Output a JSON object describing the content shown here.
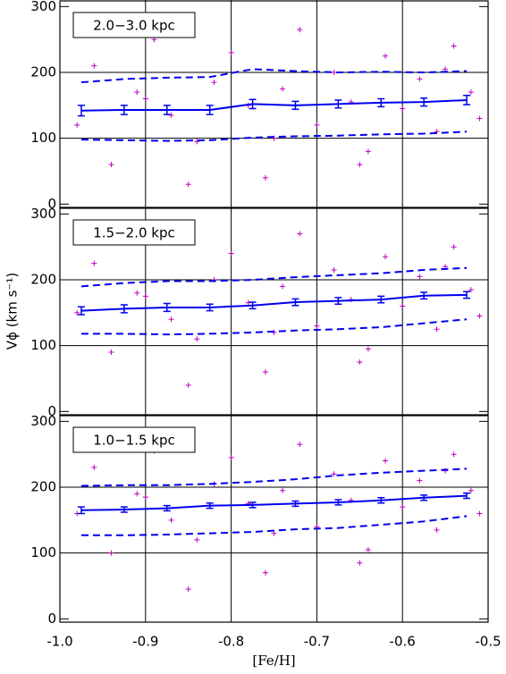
{
  "chart_data": [
    {
      "type": "line",
      "annotation": "2.0−3.0 kpc",
      "x": [
        -0.975,
        -0.925,
        -0.875,
        -0.825,
        -0.775,
        -0.725,
        -0.675,
        -0.625,
        -0.575,
        -0.525
      ],
      "series": [
        {
          "color": "#0000ee",
          "style": "solid",
          "values": [
            142,
            143,
            143,
            143,
            152,
            150,
            152,
            154,
            155,
            158
          ],
          "errors": [
            8,
            7,
            7,
            7,
            7,
            6,
            6,
            6,
            6,
            7
          ]
        },
        {
          "color": "#0000ee",
          "style": "dashed",
          "values": [
            185,
            190,
            192,
            193,
            205,
            202,
            200,
            201,
            200,
            202
          ]
        },
        {
          "color": "#0000ee",
          "style": "dashed",
          "values": [
            98,
            97,
            96,
            97,
            101,
            103,
            104,
            106,
            107,
            110
          ]
        }
      ],
      "scatter": {
        "color": "#c000c0",
        "x": [
          -0.98,
          -0.96,
          -0.94,
          -0.91,
          -0.89,
          -0.87,
          -0.84,
          -0.82,
          -0.8,
          -0.78,
          -0.76,
          -0.74,
          -0.72,
          -0.7,
          -0.68,
          -0.66,
          -0.64,
          -0.62,
          -0.6,
          -0.58,
          -0.56,
          -0.54,
          -0.52,
          -0.51,
          -0.95,
          -0.85,
          -0.75,
          -0.65,
          -0.55,
          -0.9
        ],
        "y": [
          120,
          210,
          60,
          170,
          250,
          135,
          95,
          185,
          230,
          150,
          40,
          175,
          265,
          120,
          200,
          155,
          80,
          225,
          145,
          190,
          110,
          240,
          170,
          130,
          280,
          30,
          100,
          60,
          205,
          160
        ]
      },
      "xlim": [
        -1,
        -0.5
      ],
      "xticks": [
        -0.9,
        -0.8,
        -0.7,
        -0.6
      ],
      "ylim": [
        -5,
        310
      ],
      "yticks": [
        0,
        100,
        200,
        300
      ]
    },
    {
      "type": "line",
      "annotation": "1.5−2.0 kpc",
      "ylabel": "Vϕ (km s⁻¹)",
      "x": [
        -0.975,
        -0.925,
        -0.875,
        -0.825,
        -0.775,
        -0.725,
        -0.675,
        -0.625,
        -0.575,
        -0.525
      ],
      "series": [
        {
          "color": "#0000ee",
          "style": "solid",
          "values": [
            153,
            156,
            158,
            158,
            161,
            166,
            168,
            170,
            176,
            177
          ],
          "errors": [
            6,
            6,
            6,
            5,
            5,
            5,
            5,
            5,
            5,
            5
          ]
        },
        {
          "color": "#0000ee",
          "style": "dashed",
          "values": [
            190,
            195,
            198,
            198,
            200,
            204,
            207,
            210,
            215,
            218
          ]
        },
        {
          "color": "#0000ee",
          "style": "dashed",
          "values": [
            118,
            118,
            117,
            118,
            120,
            123,
            125,
            128,
            134,
            140
          ]
        }
      ],
      "scatter": {
        "color": "#c000c0",
        "x": [
          -0.98,
          -0.96,
          -0.94,
          -0.91,
          -0.89,
          -0.87,
          -0.84,
          -0.82,
          -0.8,
          -0.78,
          -0.76,
          -0.74,
          -0.72,
          -0.7,
          -0.68,
          -0.66,
          -0.64,
          -0.62,
          -0.6,
          -0.58,
          -0.56,
          -0.54,
          -0.52,
          -0.51,
          -0.95,
          -0.85,
          -0.75,
          -0.65,
          -0.55,
          -0.9
        ],
        "y": [
          150,
          225,
          90,
          180,
          260,
          140,
          110,
          200,
          240,
          165,
          60,
          190,
          270,
          130,
          215,
          170,
          95,
          235,
          160,
          205,
          125,
          250,
          185,
          145,
          285,
          40,
          120,
          75,
          220,
          175
        ]
      },
      "xlim": [
        -1,
        -0.5
      ],
      "xticks": [
        -0.9,
        -0.8,
        -0.7,
        -0.6
      ],
      "ylim": [
        -5,
        310
      ],
      "yticks": [
        0,
        100,
        200,
        300
      ]
    },
    {
      "type": "line",
      "annotation": "1.0−1.5 kpc",
      "xlabel": "[Fe/H]",
      "x": [
        -0.975,
        -0.925,
        -0.875,
        -0.825,
        -0.775,
        -0.725,
        -0.675,
        -0.625,
        -0.575,
        -0.525
      ],
      "series": [
        {
          "color": "#0000ee",
          "style": "solid",
          "values": [
            165,
            166,
            168,
            172,
            173,
            175,
            177,
            180,
            184,
            187
          ],
          "errors": [
            5,
            4,
            4,
            4,
            4,
            4,
            4,
            4,
            4,
            4
          ]
        },
        {
          "color": "#0000ee",
          "style": "dashed",
          "values": [
            202,
            203,
            203,
            205,
            208,
            212,
            218,
            222,
            225,
            228
          ]
        },
        {
          "color": "#0000ee",
          "style": "dashed",
          "values": [
            127,
            127,
            128,
            130,
            132,
            136,
            138,
            143,
            148,
            156
          ]
        }
      ],
      "scatter": {
        "color": "#c000c0",
        "x": [
          -0.98,
          -0.96,
          -0.94,
          -0.91,
          -0.89,
          -0.87,
          -0.84,
          -0.82,
          -0.8,
          -0.78,
          -0.76,
          -0.74,
          -0.72,
          -0.7,
          -0.68,
          -0.66,
          -0.64,
          -0.62,
          -0.6,
          -0.58,
          -0.56,
          -0.54,
          -0.52,
          -0.51,
          -0.95,
          -0.85,
          -0.75,
          -0.65,
          -0.55,
          -0.9
        ],
        "y": [
          160,
          230,
          100,
          190,
          255,
          150,
          120,
          205,
          245,
          175,
          70,
          195,
          265,
          140,
          220,
          180,
          105,
          240,
          170,
          210,
          135,
          250,
          195,
          160,
          280,
          45,
          130,
          85,
          225,
          185
        ]
      },
      "xlim": [
        -1,
        -0.5
      ],
      "xticks": [
        {
          "value": -1,
          "label": "-1.0"
        },
        -0.9,
        -0.8,
        -0.7,
        -0.6,
        -0.5
      ],
      "ylim": [
        -5,
        310
      ],
      "yticks": [
        0,
        100,
        200,
        300
      ]
    }
  ]
}
